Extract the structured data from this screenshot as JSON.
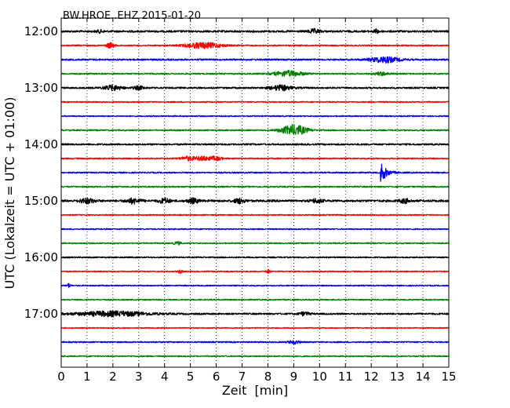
{
  "chart_data": {
    "type": "line",
    "title": "BW.HROE..EHZ 2015-01-20",
    "xlabel": "Zeit  [min]",
    "ylabel": "UTC (Lokalzeit = UTC + 01:00)",
    "x_range": [
      0,
      15
    ],
    "x_ticks": [
      "0",
      "1",
      "2",
      "3",
      "4",
      "5",
      "6",
      "7",
      "8",
      "9",
      "10",
      "11",
      "12",
      "13",
      "14",
      "15"
    ],
    "y_ticks": [
      "12:00",
      "13:00",
      "14:00",
      "15:00",
      "16:00",
      "17:00"
    ],
    "grid": "vertical dotted",
    "trace_colors": [
      "#000000",
      "#ff0000",
      "#0000ff",
      "#008000"
    ],
    "traces": [
      {
        "start": "12:00",
        "color": "#000000",
        "amp": 1.2,
        "events": [
          {
            "t": 9.8,
            "a": 2.5,
            "w": 0.3
          },
          {
            "t": 12.2,
            "a": 2.0,
            "w": 0.2
          },
          {
            "t": 1.5,
            "a": 1.5,
            "w": 0.2
          }
        ]
      },
      {
        "start": "12:15",
        "color": "#ff0000",
        "amp": 0.8,
        "events": [
          {
            "t": 1.9,
            "a": 3.5,
            "w": 0.2
          },
          {
            "t": 5.5,
            "a": 3.5,
            "w": 1.0
          }
        ]
      },
      {
        "start": "12:30",
        "color": "#0000ff",
        "amp": 1.0,
        "events": [
          {
            "t": 12.5,
            "a": 3.5,
            "w": 0.8
          }
        ]
      },
      {
        "start": "12:45",
        "color": "#008000",
        "amp": 0.8,
        "events": [
          {
            "t": 8.8,
            "a": 3.5,
            "w": 0.8
          },
          {
            "t": 12.4,
            "a": 2.0,
            "w": 0.4
          }
        ]
      },
      {
        "start": "13:00",
        "color": "#000000",
        "amp": 1.0,
        "events": [
          {
            "t": 2.0,
            "a": 3.0,
            "w": 0.5
          },
          {
            "t": 3.0,
            "a": 2.0,
            "w": 0.3
          },
          {
            "t": 8.5,
            "a": 3.0,
            "w": 0.6
          }
        ]
      },
      {
        "start": "13:15",
        "color": "#ff0000",
        "amp": 0.7,
        "events": []
      },
      {
        "start": "13:30",
        "color": "#0000ff",
        "amp": 0.7,
        "events": []
      },
      {
        "start": "13:45",
        "color": "#008000",
        "amp": 0.8,
        "events": [
          {
            "t": 9.0,
            "a": 6.5,
            "w": 0.7
          }
        ]
      },
      {
        "start": "14:00",
        "color": "#000000",
        "amp": 1.0,
        "events": []
      },
      {
        "start": "14:15",
        "color": "#ff0000",
        "amp": 0.8,
        "events": [
          {
            "t": 4.9,
            "a": 2.5,
            "w": 0.4
          },
          {
            "t": 5.5,
            "a": 2.5,
            "w": 0.4
          },
          {
            "t": 6.0,
            "a": 2.5,
            "w": 0.3
          }
        ]
      },
      {
        "start": "14:30",
        "color": "#0000ff",
        "amp": 0.8,
        "events": [
          {
            "t": 12.4,
            "a": 12.0,
            "w": 0.4
          }
        ]
      },
      {
        "start": "14:45",
        "color": "#008000",
        "amp": 0.8,
        "events": []
      },
      {
        "start": "15:00",
        "color": "#000000",
        "amp": 1.3,
        "events": [
          {
            "t": 1.0,
            "a": 3.0,
            "w": 0.4
          },
          {
            "t": 2.8,
            "a": 3.0,
            "w": 0.4
          },
          {
            "t": 4.0,
            "a": 3.0,
            "w": 0.3
          },
          {
            "t": 5.1,
            "a": 3.0,
            "w": 0.3
          },
          {
            "t": 6.9,
            "a": 3.0,
            "w": 0.3
          },
          {
            "t": 9.9,
            "a": 2.5,
            "w": 0.3
          },
          {
            "t": 13.3,
            "a": 2.5,
            "w": 0.3
          }
        ]
      },
      {
        "start": "15:15",
        "color": "#ff0000",
        "amp": 0.7,
        "events": []
      },
      {
        "start": "15:30",
        "color": "#0000ff",
        "amp": 0.7,
        "events": []
      },
      {
        "start": "15:45",
        "color": "#008000",
        "amp": 0.7,
        "events": [
          {
            "t": 4.5,
            "a": 2.0,
            "w": 0.2
          }
        ]
      },
      {
        "start": "16:00",
        "color": "#000000",
        "amp": 0.8,
        "events": []
      },
      {
        "start": "16:15",
        "color": "#ff0000",
        "amp": 0.7,
        "events": [
          {
            "t": 4.6,
            "a": 2.5,
            "w": 0.1
          },
          {
            "t": 8.0,
            "a": 2.5,
            "w": 0.1
          }
        ]
      },
      {
        "start": "16:30",
        "color": "#0000ff",
        "amp": 0.7,
        "events": [
          {
            "t": 0.3,
            "a": 2.5,
            "w": 0.1
          }
        ]
      },
      {
        "start": "16:45",
        "color": "#008000",
        "amp": 0.7,
        "events": []
      },
      {
        "start": "17:00",
        "color": "#000000",
        "amp": 1.0,
        "events": [
          {
            "t": 2.0,
            "a": 3.0,
            "w": 2.0
          },
          {
            "t": 9.4,
            "a": 2.0,
            "w": 0.3
          }
        ]
      },
      {
        "start": "17:15",
        "color": "#ff0000",
        "amp": 0.6,
        "events": []
      },
      {
        "start": "17:30",
        "color": "#0000ff",
        "amp": 0.8,
        "events": [
          {
            "t": 9.0,
            "a": 2.0,
            "w": 0.3
          }
        ]
      },
      {
        "start": "17:45",
        "color": "#008000",
        "amp": 0.7,
        "events": []
      }
    ]
  }
}
